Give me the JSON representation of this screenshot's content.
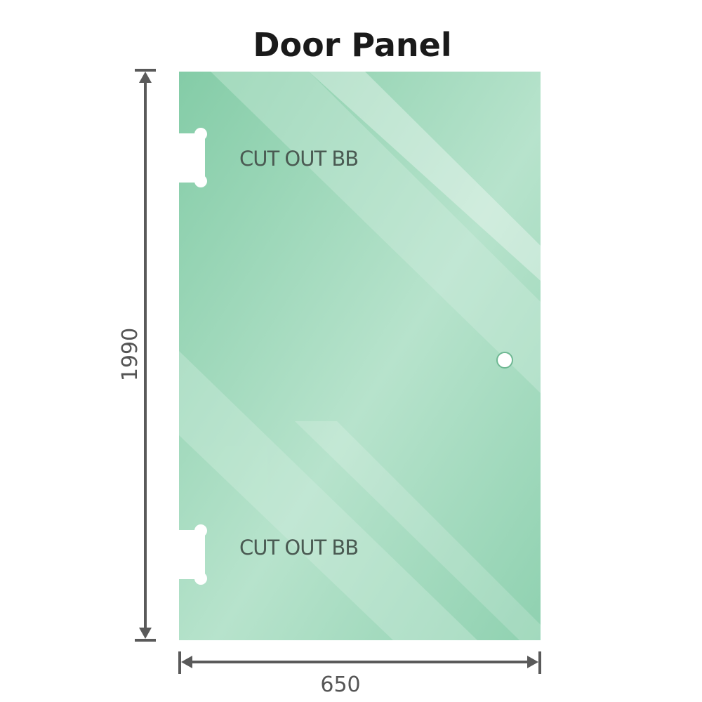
{
  "title": "Door Panel",
  "labels": {
    "cutout_top": "CUT OUT BB",
    "cutout_bottom": "CUT OUT BB"
  },
  "dimensions": {
    "height": "1990",
    "width": "650"
  },
  "colors": {
    "glass": "#8fd1b0",
    "glass_dark": "#7ec8a3",
    "dimension_line": "#5a5a5a"
  }
}
